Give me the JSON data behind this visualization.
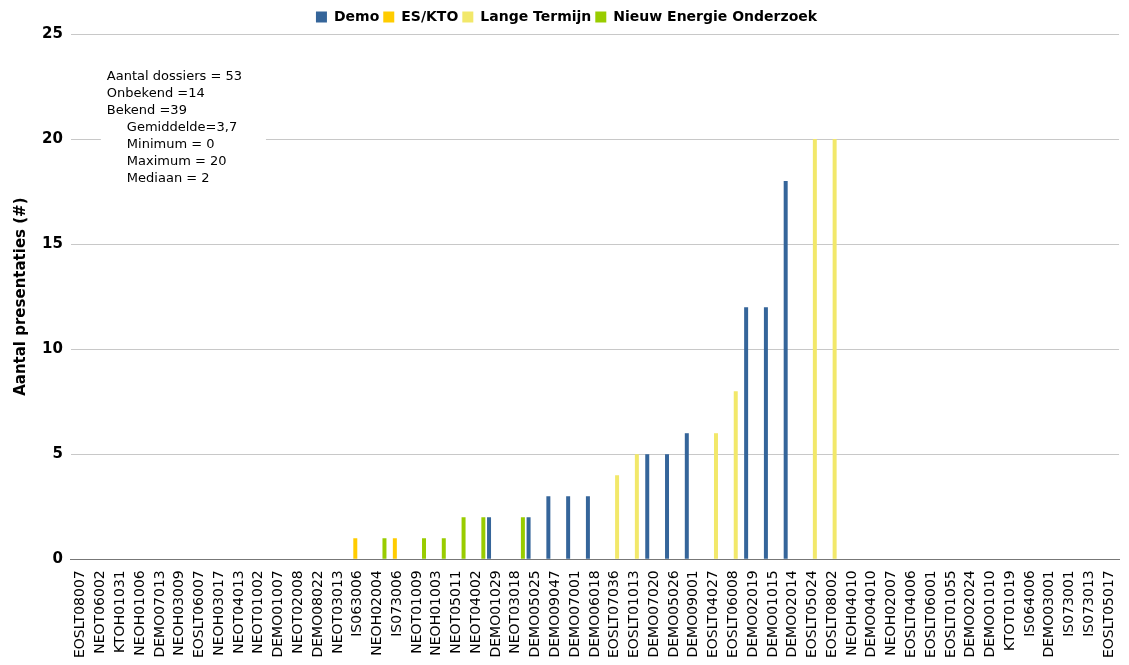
{
  "chart_data": {
    "type": "bar",
    "ylabel": "Aantal presentaties (#)",
    "categories": [
      "EOSLT08007",
      "NEOT06002",
      "KTOH01031",
      "NEOH01006",
      "DEMO07013",
      "NEOH03009",
      "EOSLT06007",
      "NEOH03017",
      "NEOT04013",
      "NEOT01002",
      "DEMO01007",
      "NEOT02008",
      "DEMO08022",
      "NEOT03013",
      "IS063006",
      "NEOH02004",
      "IS073006",
      "NEOT01009",
      "NEOH01003",
      "NEOT05011",
      "NEOT04002",
      "DEMO01029",
      "NEOT03018",
      "DEMO05025",
      "DEMO09047",
      "DEMO07001",
      "DEMO06018",
      "EOSLT07036",
      "EOSLT01013",
      "DEMO07020",
      "DEMO05026",
      "DEMO09001",
      "EOSLT04027",
      "EOSLT06008",
      "DEMO02019",
      "DEMO01015",
      "DEMO02014",
      "EOSLT05024",
      "EOSLT08002",
      "NEOH04010",
      "DEMO04010",
      "NEOH02007",
      "EOSLT04006",
      "EOSLT06001",
      "EOSLT01055",
      "DEMO02024",
      "DEMO01010",
      "KTOT01019",
      "IS064006",
      "DEMO03001",
      "IS073001",
      "IS073013",
      "EOSLT05017"
    ],
    "series": [
      {
        "name": "Demo",
        "color": "#35659a",
        "values": [
          null,
          null,
          null,
          null,
          null,
          null,
          null,
          null,
          null,
          null,
          null,
          null,
          null,
          null,
          null,
          null,
          null,
          null,
          null,
          null,
          null,
          2,
          null,
          2,
          3,
          3,
          3,
          null,
          null,
          5,
          5,
          6,
          null,
          null,
          12,
          12,
          18,
          null,
          null,
          null,
          null,
          null,
          null,
          null,
          null,
          null,
          null,
          null,
          null,
          null,
          null,
          null,
          null
        ]
      },
      {
        "name": "ES/KTO",
        "color": "#ffcc00",
        "values": [
          null,
          null,
          null,
          null,
          null,
          null,
          null,
          null,
          null,
          null,
          null,
          null,
          null,
          null,
          1,
          null,
          1,
          null,
          null,
          null,
          null,
          null,
          null,
          null,
          null,
          null,
          null,
          null,
          null,
          null,
          null,
          null,
          null,
          null,
          null,
          null,
          null,
          null,
          null,
          null,
          null,
          null,
          null,
          null,
          null,
          null,
          null,
          null,
          null,
          null,
          null,
          null,
          null
        ]
      },
      {
        "name": "Lange Termijn",
        "color": "#f2e86a",
        "values": [
          null,
          null,
          null,
          null,
          null,
          null,
          null,
          null,
          null,
          null,
          null,
          null,
          null,
          null,
          null,
          null,
          null,
          null,
          null,
          null,
          null,
          null,
          null,
          null,
          null,
          null,
          null,
          4,
          5,
          null,
          null,
          null,
          6,
          8,
          null,
          null,
          null,
          20,
          20,
          null,
          null,
          null,
          null,
          null,
          null,
          null,
          null,
          null,
          null,
          null,
          null,
          null,
          null
        ]
      },
      {
        "name": "Nieuw Energie Onderzoek",
        "color": "#99cc00",
        "values": [
          null,
          null,
          null,
          null,
          null,
          null,
          null,
          null,
          null,
          null,
          null,
          null,
          null,
          null,
          null,
          1,
          null,
          1,
          1,
          2,
          2,
          null,
          2,
          null,
          null,
          null,
          null,
          null,
          null,
          null,
          null,
          null,
          null,
          null,
          null,
          null,
          null,
          null,
          null,
          null,
          null,
          null,
          null,
          null,
          null,
          null,
          null,
          null,
          null,
          null,
          null,
          null,
          null
        ]
      }
    ],
    "ylim": [
      0,
      25
    ],
    "yticks": [
      0,
      5,
      10,
      15,
      20,
      25
    ],
    "grid": "y",
    "legend": "top",
    "annotations": [
      "Aantal dossiers = 53",
      "Onbekend =14",
      "Bekend =39",
      "Gemiddelde=3,7",
      "Minimum = 0",
      "Maximum = 20",
      "Mediaan = 2"
    ]
  }
}
